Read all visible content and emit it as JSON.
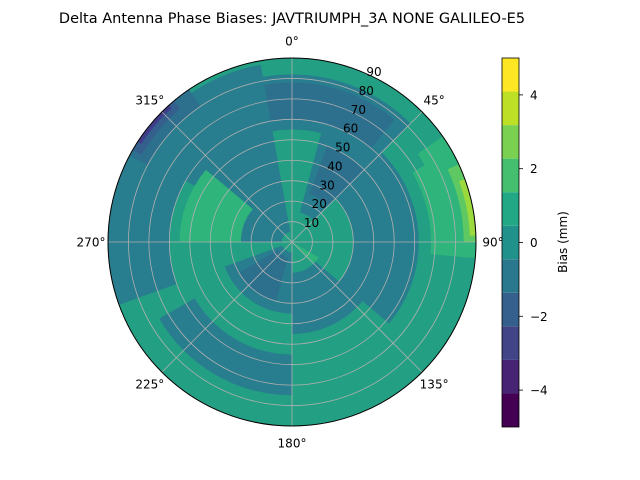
{
  "chart_data": {
    "type": "polar-contourf",
    "title": "Delta Antenna Phase Biases: JAVTRIUMPH_3A   NONE GALILEO-E5",
    "theta_zero": "top",
    "theta_direction": "clockwise",
    "radial_axis": {
      "label": "",
      "range": [
        0,
        90
      ],
      "ticks": [
        10,
        20,
        30,
        40,
        50,
        60,
        70,
        80,
        90
      ]
    },
    "angular_ticks": [
      {
        "deg": 0,
        "label": "0°"
      },
      {
        "deg": 45,
        "label": "45°"
      },
      {
        "deg": 90,
        "label": "90°"
      },
      {
        "deg": 135,
        "label": "135°"
      },
      {
        "deg": 180,
        "label": "180°"
      },
      {
        "deg": 225,
        "label": "225°"
      },
      {
        "deg": 270,
        "label": "270°"
      },
      {
        "deg": 315,
        "label": "315°"
      }
    ],
    "grid": true,
    "colorbar": {
      "label": "Bias (mm)",
      "position": "right",
      "levels": [
        -5,
        -4.5,
        -4,
        -3.5,
        -3,
        -2.5,
        -2,
        -1.5,
        -1,
        -0.5,
        0,
        0.5,
        1,
        1.5,
        2,
        2.5,
        3,
        3.5,
        4,
        4.5,
        5
      ],
      "ticks": [
        -4,
        -2,
        0,
        2,
        4
      ],
      "tick_labels": [
        "−4",
        "−2",
        "0",
        "2",
        "4"
      ]
    },
    "level_colors": [
      "#440154",
      "#482475",
      "#414487",
      "#355f8d",
      "#2a788e",
      "#21918c",
      "#22a884",
      "#44bf70",
      "#7ad151",
      "#bddf26",
      "#fde725"
    ],
    "band_colors": [
      "#471365",
      "#3f3d8a",
      "#355f8d",
      "#2d708e",
      "#287d8e",
      "#23a083",
      "#2fb47c",
      "#5ec962",
      "#9bd93c",
      "#d5e21a"
    ],
    "regions": [
      {
        "level": 0.2,
        "az": [
          0,
          360
        ],
        "el": [
          0,
          90
        ]
      },
      {
        "level": -0.8,
        "az": [
          300,
          350
        ],
        "el": [
          5,
          88
        ]
      },
      {
        "level": -0.8,
        "az": [
          350,
          45
        ],
        "el": [
          55,
          82
        ]
      },
      {
        "level": -0.8,
        "az": [
          15,
          45
        ],
        "el": [
          15,
          55
        ]
      },
      {
        "level": -0.8,
        "az": [
          45,
          130
        ],
        "el": [
          30,
          62
        ]
      },
      {
        "level": -0.8,
        "az": [
          130,
          180
        ],
        "el": [
          15,
          45
        ]
      },
      {
        "level": -0.8,
        "az": [
          180,
          250
        ],
        "el": [
          5,
          35
        ]
      },
      {
        "level": -0.8,
        "az": [
          270,
          300
        ],
        "el": [
          5,
          40
        ]
      },
      {
        "level": -0.8,
        "az": [
          270,
          300
        ],
        "el": [
          78,
          90
        ]
      },
      {
        "level": -0.8,
        "az": [
          250,
          320
        ],
        "el": [
          60,
          90
        ]
      },
      {
        "level": -0.8,
        "az": [
          180,
          240
        ],
        "el": [
          55,
          75
        ]
      },
      {
        "level": -1.2,
        "az": [
          350,
          40
        ],
        "el": [
          60,
          78
        ]
      },
      {
        "level": -1.2,
        "az": [
          20,
          45
        ],
        "el": [
          25,
          50
        ]
      },
      {
        "level": -1.2,
        "az": [
          195,
          240
        ],
        "el": [
          8,
          30
        ]
      },
      {
        "level": -1.6,
        "az": [
          298,
          326
        ],
        "el": [
          80,
          90
        ]
      },
      {
        "level": -2.5,
        "az": [
          300,
          320
        ],
        "el": [
          85,
          90
        ]
      },
      {
        "level": -3.5,
        "az": [
          303,
          318
        ],
        "el": [
          88,
          90
        ]
      },
      {
        "level": 1.2,
        "az": [
          270,
          310
        ],
        "el": [
          25,
          55
        ]
      },
      {
        "level": 1.2,
        "az": [
          60,
          95
        ],
        "el": [
          68,
          86
        ]
      },
      {
        "level": 1.2,
        "az": [
          120,
          135
        ],
        "el": [
          0,
          15
        ]
      },
      {
        "level": 1.6,
        "az": [
          55,
          95
        ],
        "el": [
          75,
          90
        ]
      },
      {
        "level": 2.2,
        "az": [
          65,
          90
        ],
        "el": [
          84,
          90
        ]
      },
      {
        "level": 3.2,
        "az": [
          70,
          88
        ],
        "el": [
          87,
          90
        ]
      }
    ]
  }
}
